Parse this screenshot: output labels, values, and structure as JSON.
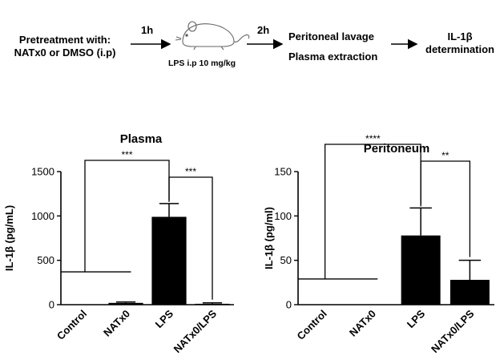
{
  "scheme": {
    "pretreatment_line1": "Pretreatment with:",
    "pretreatment_line2": "NATx0 or DMSO (i.p)",
    "step1_time": "1h",
    "mouse_icon": "mouse-icon",
    "lps_dose": "LPS i.p 10 mg/kg",
    "step2_time": "2h",
    "outcome_line1": "Peritoneal lavage",
    "outcome_line2": "Plasma extraction",
    "result_line1": "IL-1β",
    "result_line2": "determination"
  },
  "chart_data": [
    {
      "type": "bar",
      "title": "Plasma",
      "ylabel": "IL-1β (pg/mL)",
      "ylim": [
        0,
        1500
      ],
      "yticks": [
        "0",
        "500",
        "1000",
        "1500"
      ],
      "categories": [
        "Control",
        "NATx0",
        "LPS",
        "NATx0/LPS"
      ],
      "values": [
        0,
        20,
        990,
        10
      ],
      "error": [
        0,
        10,
        150,
        10
      ],
      "control_line": 370,
      "significance": [
        {
          "from": 0,
          "to": 2,
          "label": "***"
        },
        {
          "from": 2,
          "to": 3,
          "label": "***"
        }
      ],
      "bar_color": "#000000"
    },
    {
      "type": "bar",
      "title": "Peritoneum",
      "ylabel": "IL-1β (pg/ml)",
      "ylim": [
        0,
        150
      ],
      "yticks": [
        "0",
        "50",
        "100",
        "150"
      ],
      "categories": [
        "Control",
        "NATx0",
        "LPS",
        "NATx0/LPS"
      ],
      "values": [
        0,
        0,
        78,
        28
      ],
      "error": [
        0,
        0,
        31,
        22
      ],
      "control_line": 29,
      "significance": [
        {
          "from": 0,
          "to": 2,
          "label": "****"
        },
        {
          "from": 2,
          "to": 3,
          "label": "**"
        }
      ],
      "bar_color": "#000000"
    }
  ]
}
